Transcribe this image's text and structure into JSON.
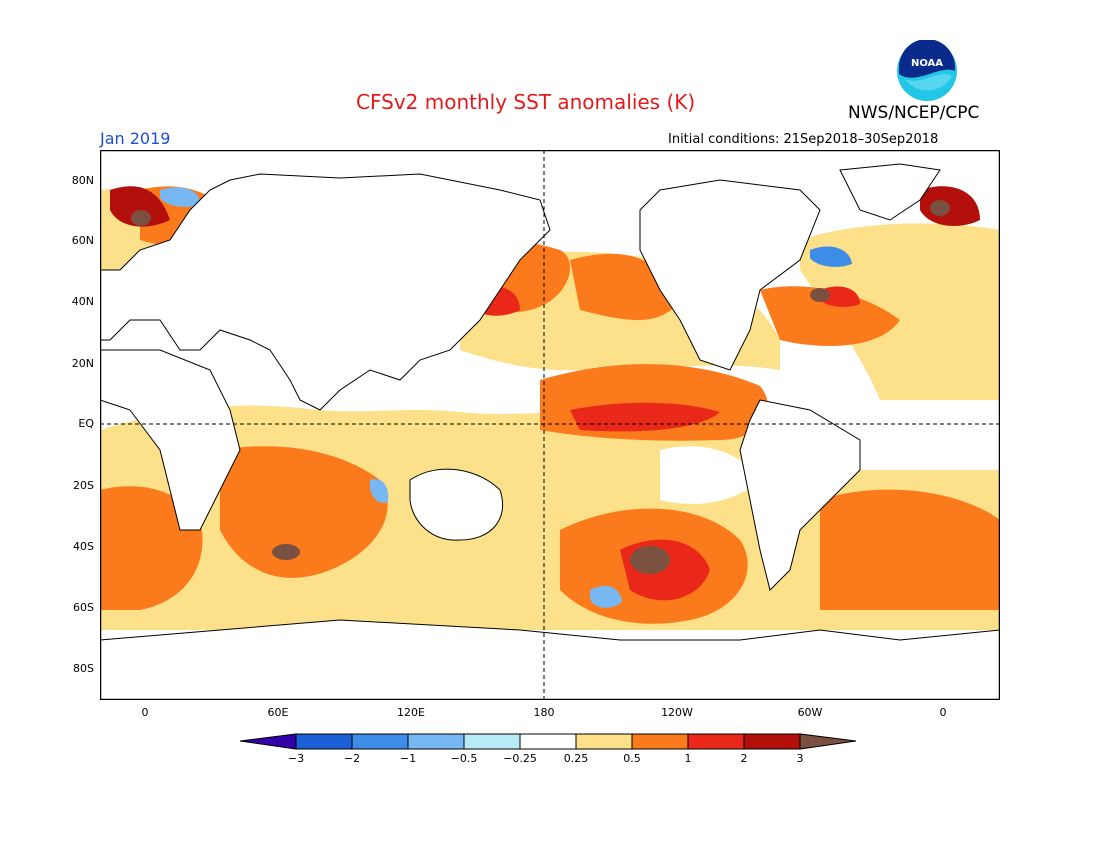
{
  "title": "CFSv2 monthly SST anomalies (K)",
  "org": "NWS/NCEP/CPC",
  "logo_text": "NOAA",
  "month": "Jan 2019",
  "initial_conditions": "Initial conditions: 21Sep2018–30Sep2018",
  "lat_labels": [
    "80N",
    "60N",
    "40N",
    "20N",
    "EQ",
    "20S",
    "40S",
    "60S",
    "80S"
  ],
  "lon_labels": [
    "0",
    "60E",
    "120E",
    "180",
    "120W",
    "60W",
    "0"
  ],
  "colorbar": {
    "labels": [
      "−3",
      "−2",
      "−1",
      "−0.5",
      "−0.25",
      "0.25",
      "0.5",
      "1",
      "2",
      "3"
    ],
    "colors": [
      "#3300aa",
      "#1b5fd6",
      "#3d8ce8",
      "#78b8f2",
      "#b7ecf5",
      "#ffffff",
      "#fde08a",
      "#fb7a1c",
      "#e9281a",
      "#b30f0b",
      "#7a5040"
    ]
  }
}
